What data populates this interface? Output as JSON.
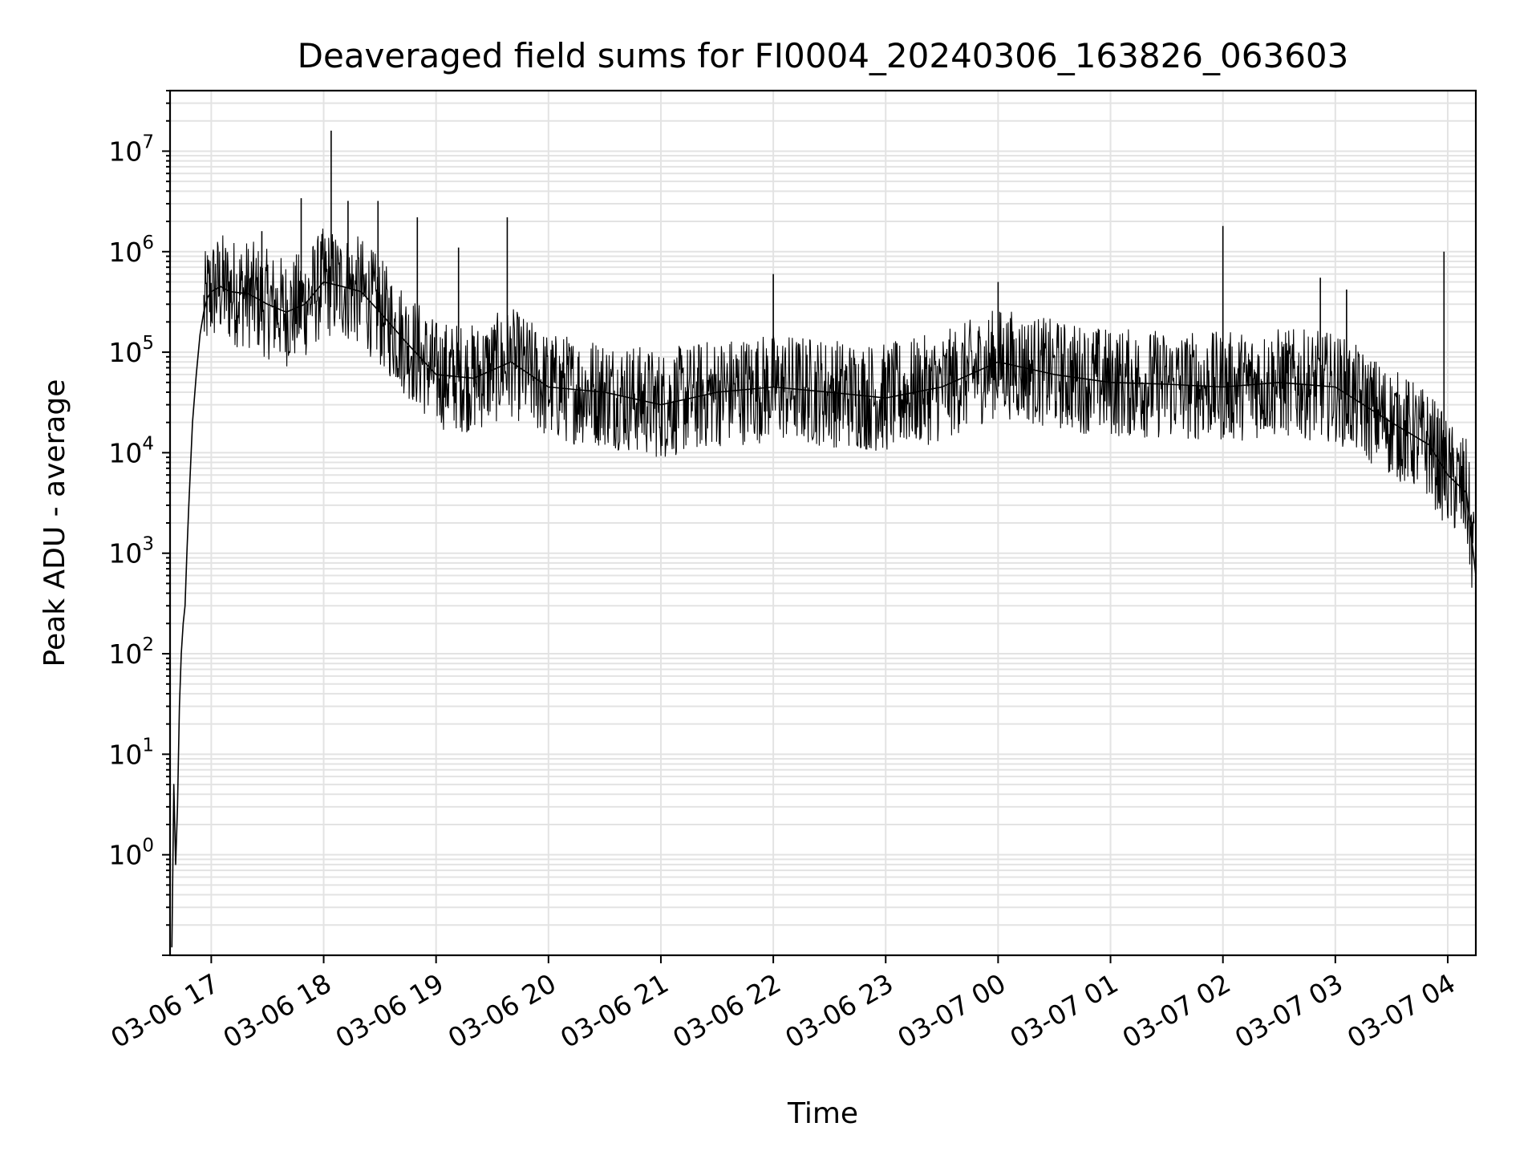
{
  "chart_data": {
    "type": "line",
    "title": "Deaveraged field sums for FI0004_20240306_163826_063603",
    "xlabel": "Time",
    "ylabel": "Peak ADU - average",
    "yscale": "log",
    "ylim": [
      0.1,
      40000000
    ],
    "xlim": [
      "2024-03-06 16:38",
      "2024-03-07 04:15"
    ],
    "grid": true,
    "line_color": "#000000",
    "x_ticks": [
      {
        "t": "2024-03-06 17:00",
        "label": "03-06 17"
      },
      {
        "t": "2024-03-06 18:00",
        "label": "03-06 18"
      },
      {
        "t": "2024-03-06 19:00",
        "label": "03-06 19"
      },
      {
        "t": "2024-03-06 20:00",
        "label": "03-06 20"
      },
      {
        "t": "2024-03-06 21:00",
        "label": "03-06 21"
      },
      {
        "t": "2024-03-06 22:00",
        "label": "03-06 22"
      },
      {
        "t": "2024-03-06 23:00",
        "label": "03-06 23"
      },
      {
        "t": "2024-03-07 00:00",
        "label": "03-07 00"
      },
      {
        "t": "2024-03-07 01:00",
        "label": "03-07 01"
      },
      {
        "t": "2024-03-07 02:00",
        "label": "03-07 02"
      },
      {
        "t": "2024-03-07 03:00",
        "label": "03-07 03"
      },
      {
        "t": "2024-03-07 04:00",
        "label": "03-07 04"
      }
    ],
    "y_ticks": [
      {
        "value": 1,
        "base": "10",
        "exp": "0"
      },
      {
        "value": 10,
        "base": "10",
        "exp": "1"
      },
      {
        "value": 100,
        "base": "10",
        "exp": "2"
      },
      {
        "value": 1000,
        "base": "10",
        "exp": "3"
      },
      {
        "value": 10000,
        "base": "10",
        "exp": "4"
      },
      {
        "value": 100000,
        "base": "10",
        "exp": "5"
      },
      {
        "value": 1000000,
        "base": "10",
        "exp": "6"
      },
      {
        "value": 10000000,
        "base": "10",
        "exp": "7"
      }
    ],
    "series": [
      {
        "x": [
          "2024-03-06 16:39",
          "2024-03-06 16:40",
          "2024-03-06 16:41",
          "2024-03-06 16:42",
          "2024-03-06 16:43",
          "2024-03-06 16:44",
          "2024-03-06 16:45",
          "2024-03-06 16:46",
          "2024-03-06 16:47",
          "2024-03-06 16:48",
          "2024-03-06 16:50",
          "2024-03-06 16:52",
          "2024-03-06 16:54",
          "2024-03-06 16:56",
          "2024-03-06 16:58",
          "2024-03-06 17:00",
          "2024-03-06 17:05",
          "2024-03-06 17:10",
          "2024-03-06 17:20",
          "2024-03-06 17:30",
          "2024-03-06 17:40",
          "2024-03-06 17:50",
          "2024-03-06 18:00",
          "2024-03-06 18:10",
          "2024-03-06 18:20",
          "2024-03-06 18:30",
          "2024-03-06 18:45",
          "2024-03-06 19:00",
          "2024-03-06 19:20",
          "2024-03-06 19:40",
          "2024-03-06 20:00",
          "2024-03-06 20:30",
          "2024-03-06 21:00",
          "2024-03-06 21:30",
          "2024-03-06 22:00",
          "2024-03-06 22:30",
          "2024-03-06 23:00",
          "2024-03-06 23:30",
          "2024-03-07 00:00",
          "2024-03-07 00:30",
          "2024-03-07 01:00",
          "2024-03-07 01:30",
          "2024-03-07 02:00",
          "2024-03-07 02:30",
          "2024-03-07 03:00",
          "2024-03-07 03:30",
          "2024-03-07 03:50",
          "2024-03-07 04:00",
          "2024-03-07 04:10",
          "2024-03-07 04:15"
        ],
        "y": [
          0.12,
          5,
          0.8,
          3,
          30,
          100,
          200,
          300,
          1000,
          3000,
          20000,
          60000,
          150000,
          250000,
          350000,
          400000,
          450000,
          400000,
          380000,
          300000,
          250000,
          300000,
          500000,
          450000,
          400000,
          250000,
          120000,
          60000,
          55000,
          80000,
          45000,
          40000,
          30000,
          40000,
          45000,
          40000,
          35000,
          45000,
          80000,
          60000,
          50000,
          48000,
          45000,
          50000,
          45000,
          20000,
          12000,
          6000,
          4000,
          600
        ]
      }
    ],
    "spikes": [
      {
        "x": "2024-03-06 17:27",
        "y": 1600000
      },
      {
        "x": "2024-03-06 17:48",
        "y": 3400000
      },
      {
        "x": "2024-03-06 18:04",
        "y": 16000000
      },
      {
        "x": "2024-03-06 18:13",
        "y": 3200000
      },
      {
        "x": "2024-03-06 18:29",
        "y": 3200000
      },
      {
        "x": "2024-03-06 18:50",
        "y": 2200000
      },
      {
        "x": "2024-03-06 19:12",
        "y": 1100000
      },
      {
        "x": "2024-03-06 19:38",
        "y": 2200000
      },
      {
        "x": "2024-03-06 22:00",
        "y": 600000
      },
      {
        "x": "2024-03-07 00:00",
        "y": 500000
      },
      {
        "x": "2024-03-07 02:00",
        "y": 1800000
      },
      {
        "x": "2024-03-07 02:52",
        "y": 550000
      },
      {
        "x": "2024-03-07 03:06",
        "y": 420000
      },
      {
        "x": "2024-03-07 03:58",
        "y": 1000000
      }
    ]
  }
}
